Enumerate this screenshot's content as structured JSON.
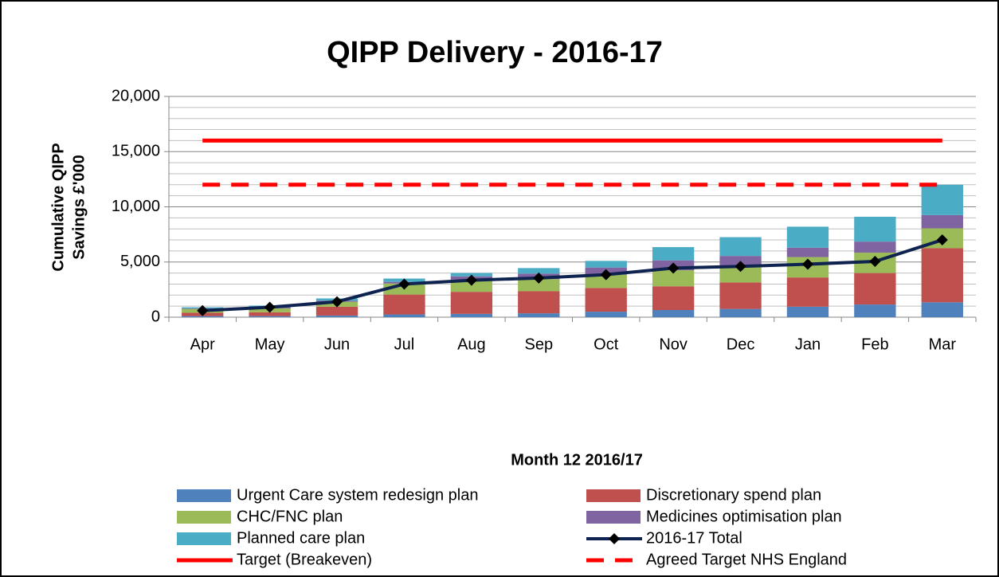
{
  "chart_data": {
    "type": "bar",
    "stacked": true,
    "title": "QIPP Delivery - 2016-17",
    "subtitle": "Month 12 2016/17",
    "ylabel": [
      "Cumulative QIPP",
      "Savings £'000"
    ],
    "categories": [
      "Apr",
      "May",
      "Jun",
      "Jul",
      "Aug",
      "Sep",
      "Oct",
      "Nov",
      "Dec",
      "Jan",
      "Feb",
      "Mar"
    ],
    "ylim": [
      0,
      20000
    ],
    "yticks": [
      0,
      {
        "value": 5000,
        "label": "5,000"
      },
      {
        "value": 10000,
        "label": "10,000"
      },
      {
        "value": 15000,
        "label": "15,000"
      },
      {
        "value": 20000,
        "label": "20,000"
      }
    ],
    "minor_yticks": [
      1000,
      2000,
      3000,
      4000,
      6000,
      7000,
      8000,
      9000,
      11000,
      12000,
      13000,
      14000,
      16000,
      17000,
      18000,
      19000
    ],
    "grid": true,
    "legend": "bottom",
    "series": [
      {
        "name": "Urgent Care system redesign plan",
        "type": "bar",
        "color": "#4f81bd",
        "values": [
          100,
          100,
          150,
          250,
          300,
          350,
          500,
          650,
          750,
          950,
          1150,
          1350
        ]
      },
      {
        "name": "Discretionary spend plan",
        "type": "bar",
        "color": "#c0504d",
        "values": [
          300,
          350,
          800,
          1800,
          2000,
          2000,
          2150,
          2150,
          2400,
          2650,
          2850,
          4900
        ]
      },
      {
        "name": "CHC/FNC plan",
        "type": "bar",
        "color": "#9bbb59",
        "values": [
          350,
          350,
          450,
          1000,
          1100,
          1100,
          1200,
          1450,
          1500,
          1850,
          1850,
          1800
        ]
      },
      {
        "name": "Medicines optimisation plan",
        "type": "bar",
        "color": "#8064a2",
        "values": [
          50,
          100,
          100,
          150,
          300,
          500,
          650,
          900,
          900,
          850,
          1000,
          1200
        ]
      },
      {
        "name": "Planned care plan",
        "type": "bar",
        "color": "#4bacc6",
        "values": [
          100,
          150,
          200,
          300,
          300,
          500,
          600,
          1200,
          1700,
          1900,
          2250,
          2750
        ]
      },
      {
        "name": "2016-17 Total",
        "type": "line",
        "color": "#0f2350",
        "marker": "diamond",
        "values": [
          600,
          900,
          1400,
          3000,
          3350,
          3550,
          3850,
          4450,
          4600,
          4800,
          5050,
          7000
        ]
      },
      {
        "name": "Target (Breakeven)",
        "type": "line",
        "color": "#ff0000",
        "values": [
          16000,
          16000,
          16000,
          16000,
          16000,
          16000,
          16000,
          16000,
          16000,
          16000,
          16000,
          16000
        ]
      },
      {
        "name": "Agreed Target NHS England",
        "type": "line",
        "color": "#ff0000",
        "style": "dashed",
        "values": [
          12000,
          12000,
          12000,
          12000,
          12000,
          12000,
          12000,
          12000,
          12000,
          12000,
          12000,
          12000
        ]
      }
    ]
  }
}
